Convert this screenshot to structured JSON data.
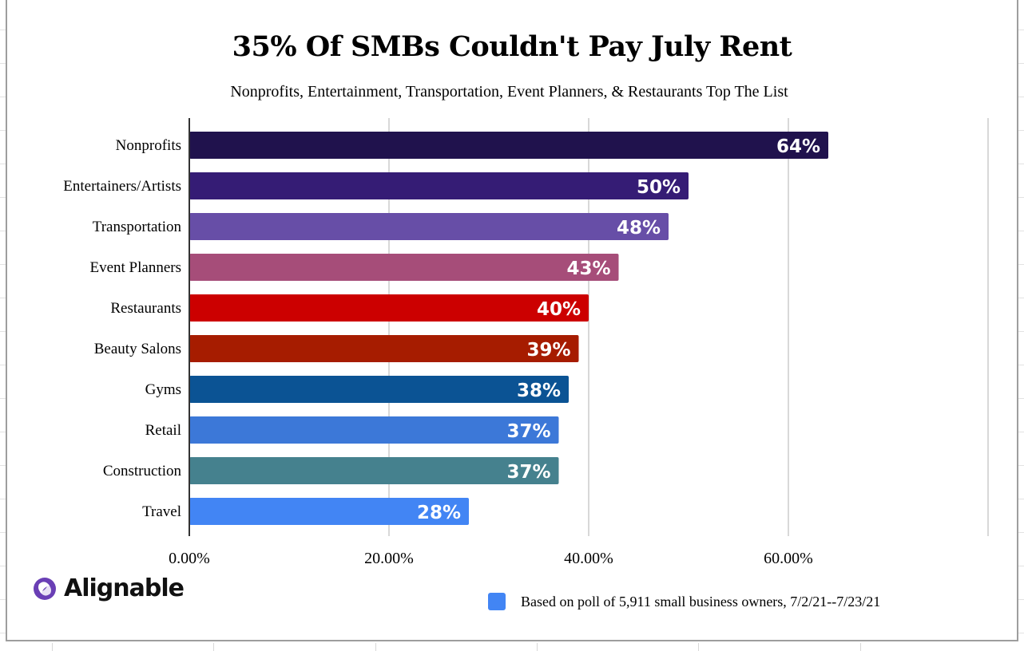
{
  "chart_data": {
    "type": "bar",
    "orientation": "horizontal",
    "title": "35% Of SMBs Couldn't Pay July Rent",
    "subtitle": "Nonprofits, Entertainment, Transportation, Event Planners, & Restaurants Top The List",
    "categories": [
      "Nonprofits",
      "Entertainers/Artists",
      "Transportation",
      "Event Planners",
      "Restaurants",
      "Beauty Salons",
      "Gyms",
      "Retail",
      "Construction",
      "Travel"
    ],
    "values": [
      64,
      50,
      48,
      43,
      40,
      39,
      38,
      37,
      37,
      28
    ],
    "data_labels": [
      "64%",
      "50%",
      "48%",
      "43%",
      "40%",
      "39%",
      "38%",
      "37%",
      "37%",
      "28%"
    ],
    "colors": [
      "#20124d",
      "#351c75",
      "#674ea7",
      "#a64d79",
      "#cc0000",
      "#a61c00",
      "#0b5394",
      "#3c78d8",
      "#45818e",
      "#4285f4"
    ],
    "xlim": [
      0,
      80
    ],
    "xticks": [
      0,
      20,
      40,
      60,
      80
    ],
    "xtick_labels": [
      "0.00%",
      "20.00%",
      "40.00%",
      "60.00%",
      ""
    ],
    "grid": true,
    "legend": {
      "position": "bottom-right",
      "entries": [
        {
          "label": "Based on poll of 5,911 small business owners, 7/2/21--7/23/21",
          "color": "#4285f4"
        }
      ]
    }
  },
  "logo": {
    "text": "Alignable",
    "color": "#6a3fb5"
  }
}
